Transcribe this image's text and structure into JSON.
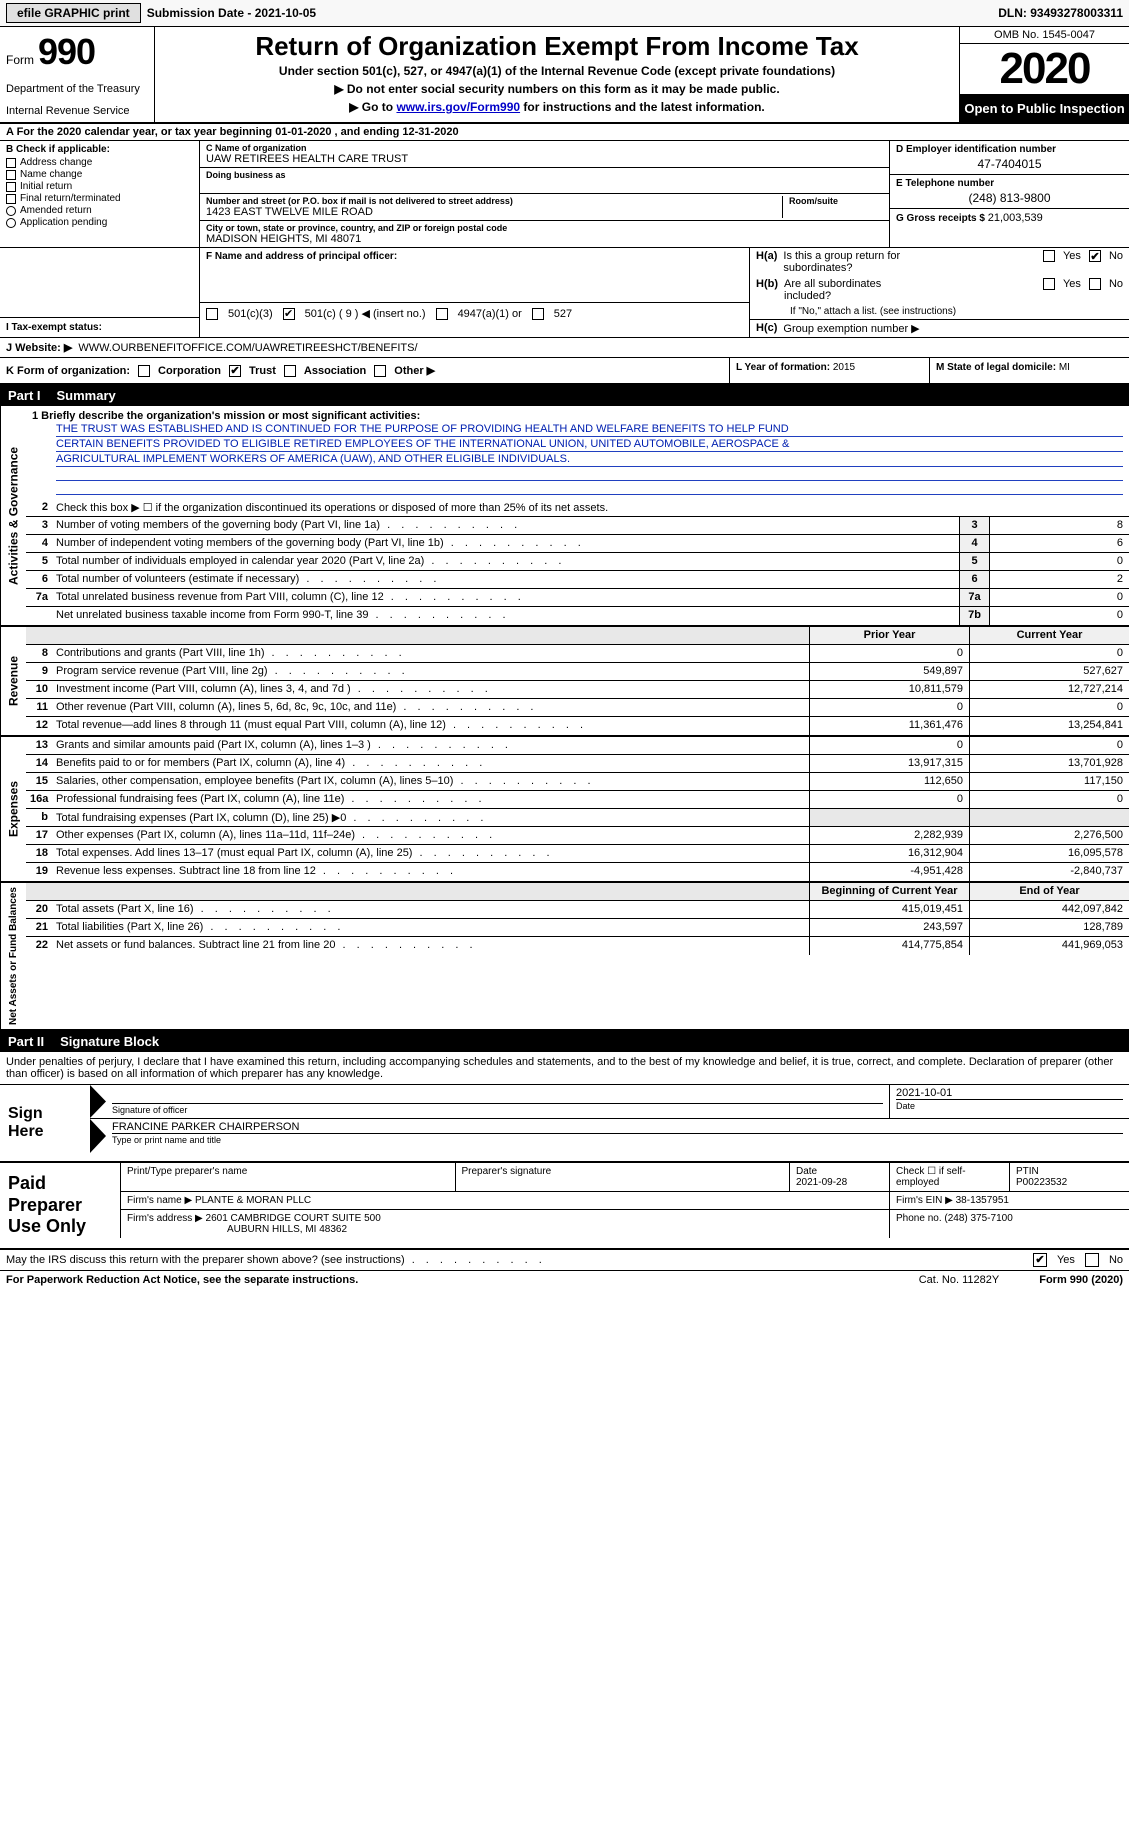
{
  "topbar": {
    "efile": "efile GRAPHIC print",
    "subdate_lbl": "Submission Date - ",
    "subdate": "2021-10-05",
    "dln_lbl": "DLN: ",
    "dln": "93493278003311"
  },
  "header": {
    "form_word": "Form",
    "form_num": "990",
    "dept": "Department of the Treasury",
    "irs": "Internal Revenue Service",
    "title": "Return of Organization Exempt From Income Tax",
    "sub1": "Under section 501(c), 527, or 4947(a)(1) of the Internal Revenue Code (except private foundations)",
    "sub2": "▶ Do not enter social security numbers on this form as it may be made public.",
    "sub3_pre": "▶ Go to ",
    "sub3_link": "www.irs.gov/Form990",
    "sub3_post": " for instructions and the latest information.",
    "omb": "OMB No. 1545-0047",
    "year": "2020",
    "open": "Open to Public Inspection"
  },
  "row_a": "A For the 2020 calendar year, or tax year beginning 01-01-2020    , and ending 12-31-2020",
  "col_b": {
    "hdr": "B Check if applicable:",
    "opts": [
      "Address change",
      "Name change",
      "Initial return",
      "Final return/terminated",
      "Amended return",
      "Application pending"
    ],
    "amended_radio": " "
  },
  "col_c": {
    "name_lbl": "C Name of organization",
    "name": "UAW RETIREES HEALTH CARE TRUST",
    "dba_lbl": "Doing business as",
    "dba": "",
    "addr_lbl": "Number and street (or P.O. box if mail is not delivered to street address)",
    "room_lbl": "Room/suite",
    "addr": "1423 EAST TWELVE MILE ROAD",
    "city_lbl": "City or town, state or province, country, and ZIP or foreign postal code",
    "city": "MADISON HEIGHTS, MI  48071"
  },
  "col_d": {
    "ein_lbl": "D Employer identification number",
    "ein": "47-7404015",
    "tel_lbl": "E Telephone number",
    "tel": "(248) 813-9800",
    "gross_lbl": "G Gross receipts $ ",
    "gross": "21,003,539"
  },
  "col_f": {
    "lbl": "F  Name and address of principal officer:",
    "val": ""
  },
  "col_h": {
    "a": "H(a)  Is this a group return for subordinates?",
    "b": "H(b)  Are all subordinates included?",
    "b_note": "If \"No,\" attach a list. (see instructions)",
    "c": "H(c)  Group exemption number ▶",
    "yes": "Yes",
    "no": "No"
  },
  "tax_status": {
    "lbl": "I   Tax-exempt status:",
    "o1": "501(c)(3)",
    "o2": "501(c) ( 9 ) ◀ (insert no.)",
    "o3": "4947(a)(1) or",
    "o4": "527"
  },
  "row_j": {
    "lbl": "J   Website: ▶",
    "val": "WWW.OURBENEFITOFFICE.COM/UAWRETIREESHCT/BENEFITS/"
  },
  "row_k": {
    "lbl": "K Form of organization:",
    "o1": "Corporation",
    "o2": "Trust",
    "o3": "Association",
    "o4": "Other ▶"
  },
  "row_l": {
    "lbl": "L Year of formation: ",
    "val": "2015"
  },
  "row_m": {
    "lbl": "M State of legal domicile: ",
    "val": "MI"
  },
  "part1": {
    "num": "Part I",
    "title": "Summary"
  },
  "mission": {
    "lbl": "1   Briefly describe the organization's mission or most significant activities:",
    "line1": "THE TRUST WAS ESTABLISHED AND IS CONTINUED FOR THE PURPOSE OF PROVIDING HEALTH AND WELFARE BENEFITS TO HELP FUND",
    "line2": "CERTAIN BENEFITS PROVIDED TO ELIGIBLE RETIRED EMPLOYEES OF THE INTERNATIONAL UNION, UNITED AUTOMOBILE, AEROSPACE &",
    "line3": "AGRICULTURAL IMPLEMENT WORKERS OF AMERICA (UAW), AND OTHER ELIGIBLE INDIVIDUALS."
  },
  "vtabs": {
    "gov": "Activities & Governance",
    "rev": "Revenue",
    "exp": "Expenses",
    "net": "Net Assets or Fund Balances"
  },
  "lines_gov": [
    {
      "n": "2",
      "t": "Check this box ▶ ☐  if the organization discontinued its operations or disposed of more than 25% of its net assets."
    },
    {
      "n": "3",
      "t": "Number of voting members of the governing body (Part VI, line 1a)",
      "box": "3",
      "v": "8"
    },
    {
      "n": "4",
      "t": "Number of independent voting members of the governing body (Part VI, line 1b)",
      "box": "4",
      "v": "6"
    },
    {
      "n": "5",
      "t": "Total number of individuals employed in calendar year 2020 (Part V, line 2a)",
      "box": "5",
      "v": "0"
    },
    {
      "n": "6",
      "t": "Total number of volunteers (estimate if necessary)",
      "box": "6",
      "v": "2"
    },
    {
      "n": "7a",
      "t": "Total unrelated business revenue from Part VIII, column (C), line 12",
      "box": "7a",
      "v": "0"
    },
    {
      "n": "",
      "t": "Net unrelated business taxable income from Form 990-T, line 39",
      "box": "7b",
      "v": "0"
    }
  ],
  "hdr2": {
    "py": "Prior Year",
    "cy": "Current Year"
  },
  "lines_rev": [
    {
      "n": "8",
      "t": "Contributions and grants (Part VIII, line 1h)",
      "py": "0",
      "cy": "0"
    },
    {
      "n": "9",
      "t": "Program service revenue (Part VIII, line 2g)",
      "py": "549,897",
      "cy": "527,627"
    },
    {
      "n": "10",
      "t": "Investment income (Part VIII, column (A), lines 3, 4, and 7d )",
      "py": "10,811,579",
      "cy": "12,727,214"
    },
    {
      "n": "11",
      "t": "Other revenue (Part VIII, column (A), lines 5, 6d, 8c, 9c, 10c, and 11e)",
      "py": "0",
      "cy": "0"
    },
    {
      "n": "12",
      "t": "Total revenue—add lines 8 through 11 (must equal Part VIII, column (A), line 12)",
      "py": "11,361,476",
      "cy": "13,254,841"
    }
  ],
  "lines_exp": [
    {
      "n": "13",
      "t": "Grants and similar amounts paid (Part IX, column (A), lines 1–3 )",
      "py": "0",
      "cy": "0"
    },
    {
      "n": "14",
      "t": "Benefits paid to or for members (Part IX, column (A), line 4)",
      "py": "13,917,315",
      "cy": "13,701,928"
    },
    {
      "n": "15",
      "t": "Salaries, other compensation, employee benefits (Part IX, column (A), lines 5–10)",
      "py": "112,650",
      "cy": "117,150"
    },
    {
      "n": "16a",
      "t": "Professional fundraising fees (Part IX, column (A), line 11e)",
      "py": "0",
      "cy": "0"
    },
    {
      "n": "b",
      "t": "Total fundraising expenses (Part IX, column (D), line 25) ▶0",
      "py": "",
      "cy": "",
      "gray": true
    },
    {
      "n": "17",
      "t": "Other expenses (Part IX, column (A), lines 11a–11d, 11f–24e)",
      "py": "2,282,939",
      "cy": "2,276,500"
    },
    {
      "n": "18",
      "t": "Total expenses. Add lines 13–17 (must equal Part IX, column (A), line 25)",
      "py": "16,312,904",
      "cy": "16,095,578"
    },
    {
      "n": "19",
      "t": "Revenue less expenses. Subtract line 18 from line 12",
      "py": "-4,951,428",
      "cy": "-2,840,737"
    }
  ],
  "hdr3": {
    "py": "Beginning of Current Year",
    "cy": "End of Year"
  },
  "lines_net": [
    {
      "n": "20",
      "t": "Total assets (Part X, line 16)",
      "py": "415,019,451",
      "cy": "442,097,842"
    },
    {
      "n": "21",
      "t": "Total liabilities (Part X, line 26)",
      "py": "243,597",
      "cy": "128,789"
    },
    {
      "n": "22",
      "t": "Net assets or fund balances. Subtract line 21 from line 20",
      "py": "414,775,854",
      "cy": "441,969,053"
    }
  ],
  "part2": {
    "num": "Part II",
    "title": "Signature Block"
  },
  "sig_intro": "Under penalties of perjury, I declare that I have examined this return, including accompanying schedules and statements, and to the best of my knowledge and belief, it is true, correct, and complete. Declaration of preparer (other than officer) is based on all information of which preparer has any knowledge.",
  "sign_here": "Sign Here",
  "sig": {
    "date": "2021-10-01",
    "sig_lbl": "Signature of officer",
    "date_lbl": "Date",
    "name": "FRANCINE PARKER CHAIRPERSON",
    "name_lbl": "Type or print name and title"
  },
  "prep_lbl": "Paid Preparer Use Only",
  "prep": {
    "r1": {
      "name_lbl": "Print/Type preparer's name",
      "name": "",
      "sig_lbl": "Preparer's signature",
      "date_lbl": "Date",
      "date": "2021-09-28",
      "check_lbl": "Check ☐ if self-employed",
      "ptin_lbl": "PTIN",
      "ptin": "P00223532"
    },
    "r2": {
      "firm_lbl": "Firm's name     ▶ ",
      "firm": "PLANTE & MORAN PLLC",
      "ein_lbl": "Firm's EIN ▶ ",
      "ein": "38-1357951"
    },
    "r3": {
      "addr_lbl": "Firm's address ▶ ",
      "addr1": "2601 CAMBRIDGE COURT SUITE 500",
      "addr2": "AUBURN HILLS, MI  48362",
      "phone_lbl": "Phone no. ",
      "phone": "(248) 375-7100"
    }
  },
  "discuss": {
    "txt": "May the IRS discuss this return with the preparer shown above? (see instructions)",
    "yes": "Yes",
    "no": "No"
  },
  "bottom": {
    "l": "For Paperwork Reduction Act Notice, see the separate instructions.",
    "c": "Cat. No. 11282Y",
    "r": "Form 990 (2020)"
  }
}
